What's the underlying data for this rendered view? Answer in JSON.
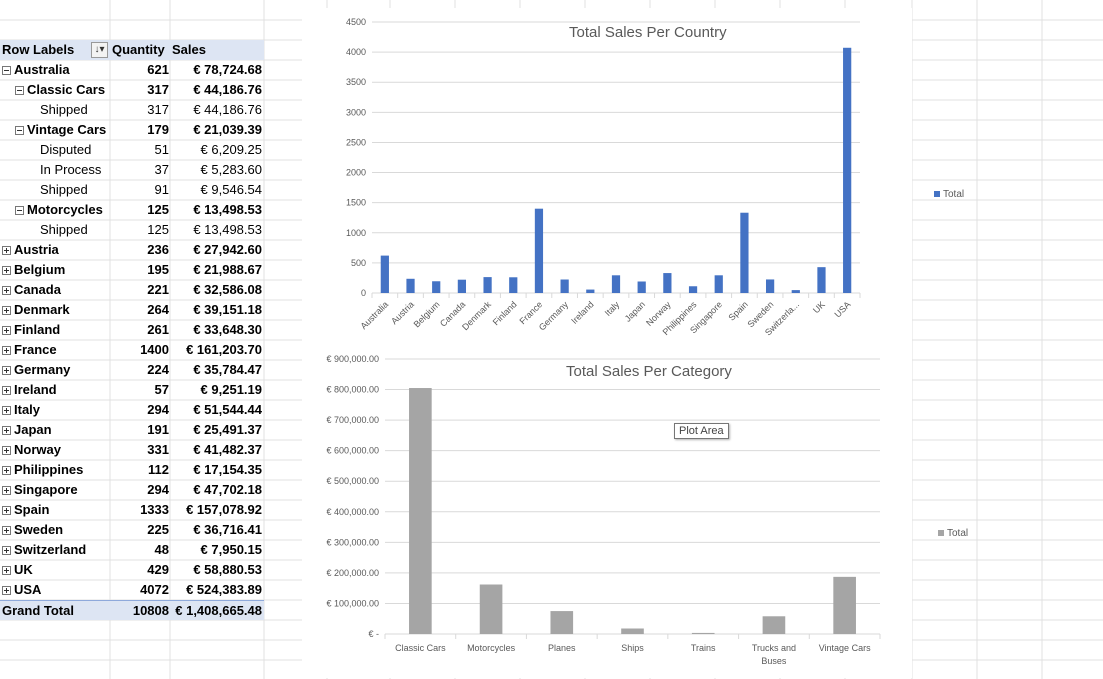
{
  "pivot": {
    "header": {
      "row_labels": "Row Labels",
      "quantity": "Quantity",
      "sales": "Sales"
    },
    "rows": [
      {
        "label": "Australia",
        "qty": "621",
        "sales": "€ 78,724.68",
        "level": 0,
        "toggle": "minus"
      },
      {
        "label": "Classic Cars",
        "qty": "317",
        "sales": "€ 44,186.76",
        "level": 1,
        "toggle": "minus"
      },
      {
        "label": "Shipped",
        "qty": "317",
        "sales": "€ 44,186.76",
        "level": 2,
        "toggle": ""
      },
      {
        "label": "Vintage Cars",
        "qty": "179",
        "sales": "€ 21,039.39",
        "level": 1,
        "toggle": "minus"
      },
      {
        "label": "Disputed",
        "qty": "51",
        "sales": "€ 6,209.25",
        "level": 2,
        "toggle": ""
      },
      {
        "label": "In Process",
        "qty": "37",
        "sales": "€ 5,283.60",
        "level": 2,
        "toggle": ""
      },
      {
        "label": "Shipped",
        "qty": "91",
        "sales": "€ 9,546.54",
        "level": 2,
        "toggle": ""
      },
      {
        "label": "Motorcycles",
        "qty": "125",
        "sales": "€ 13,498.53",
        "level": 1,
        "toggle": "minus"
      },
      {
        "label": "Shipped",
        "qty": "125",
        "sales": "€ 13,498.53",
        "level": 2,
        "toggle": ""
      },
      {
        "label": "Austria",
        "qty": "236",
        "sales": "€ 27,942.60",
        "level": 0,
        "toggle": "plus"
      },
      {
        "label": "Belgium",
        "qty": "195",
        "sales": "€ 21,988.67",
        "level": 0,
        "toggle": "plus"
      },
      {
        "label": "Canada",
        "qty": "221",
        "sales": "€ 32,586.08",
        "level": 0,
        "toggle": "plus"
      },
      {
        "label": "Denmark",
        "qty": "264",
        "sales": "€ 39,151.18",
        "level": 0,
        "toggle": "plus"
      },
      {
        "label": "Finland",
        "qty": "261",
        "sales": "€ 33,648.30",
        "level": 0,
        "toggle": "plus"
      },
      {
        "label": "France",
        "qty": "1400",
        "sales": "€ 161,203.70",
        "level": 0,
        "toggle": "plus"
      },
      {
        "label": "Germany",
        "qty": "224",
        "sales": "€ 35,784.47",
        "level": 0,
        "toggle": "plus"
      },
      {
        "label": "Ireland",
        "qty": "57",
        "sales": "€ 9,251.19",
        "level": 0,
        "toggle": "plus"
      },
      {
        "label": "Italy",
        "qty": "294",
        "sales": "€ 51,544.44",
        "level": 0,
        "toggle": "plus"
      },
      {
        "label": "Japan",
        "qty": "191",
        "sales": "€ 25,491.37",
        "level": 0,
        "toggle": "plus"
      },
      {
        "label": "Norway",
        "qty": "331",
        "sales": "€ 41,482.37",
        "level": 0,
        "toggle": "plus"
      },
      {
        "label": "Philippines",
        "qty": "112",
        "sales": "€ 17,154.35",
        "level": 0,
        "toggle": "plus"
      },
      {
        "label": "Singapore",
        "qty": "294",
        "sales": "€ 47,702.18",
        "level": 0,
        "toggle": "plus"
      },
      {
        "label": "Spain",
        "qty": "1333",
        "sales": "€ 157,078.92",
        "level": 0,
        "toggle": "plus"
      },
      {
        "label": "Sweden",
        "qty": "225",
        "sales": "€ 36,716.41",
        "level": 0,
        "toggle": "plus"
      },
      {
        "label": "Switzerland",
        "qty": "48",
        "sales": "€ 7,950.15",
        "level": 0,
        "toggle": "plus"
      },
      {
        "label": "UK",
        "qty": "429",
        "sales": "€ 58,880.53",
        "level": 0,
        "toggle": "plus"
      },
      {
        "label": "USA",
        "qty": "4072",
        "sales": "€ 524,383.89",
        "level": 0,
        "toggle": "plus"
      }
    ],
    "grand_total": {
      "label": "Grand Total",
      "qty": "10808",
      "sales": "€ 1,408,665.48"
    }
  },
  "tooltip": "Plot Area",
  "chart_data": [
    {
      "type": "bar",
      "title": "Total Sales Per Country",
      "categories": [
        "Australia",
        "Austria",
        "Belgium",
        "Canada",
        "Denmark",
        "Finland",
        "France",
        "Germany",
        "Ireland",
        "Italy",
        "Japan",
        "Norway",
        "Philippines",
        "Singapore",
        "Spain",
        "Sweden",
        "Switzerla...",
        "UK",
        "USA"
      ],
      "series": [
        {
          "name": "Total",
          "values": [
            621,
            236,
            195,
            221,
            264,
            261,
            1400,
            224,
            57,
            294,
            191,
            331,
            112,
            294,
            1333,
            225,
            48,
            429,
            4072
          ]
        }
      ],
      "ylim": [
        0,
        4500
      ],
      "yticks": [
        "0",
        "500",
        "1000",
        "1500",
        "2000",
        "2500",
        "3000",
        "3500",
        "4000",
        "4500"
      ],
      "legend_position": "right",
      "color": "#4472c4",
      "grid": true
    },
    {
      "type": "bar",
      "title": "Total Sales Per Category",
      "categories": [
        "Classic Cars",
        "Motorcycles",
        "Planes",
        "Ships",
        "Trains",
        "Trucks and Buses",
        "Vintage Cars"
      ],
      "series": [
        {
          "name": "Total",
          "values": [
            805000,
            162000,
            75000,
            18000,
            3500,
            58000,
            187000
          ]
        }
      ],
      "ylim": [
        0,
        900000
      ],
      "yticks": [
        "€ -",
        "€ 100,000.00",
        "€ 200,000.00",
        "€ 300,000.00",
        "€ 400,000.00",
        "€ 500,000.00",
        "€ 600,000.00",
        "€ 700,000.00",
        "€ 800,000.00",
        "€ 900,000.00"
      ],
      "legend_position": "right",
      "color": "#a5a5a5",
      "grid": true
    }
  ]
}
